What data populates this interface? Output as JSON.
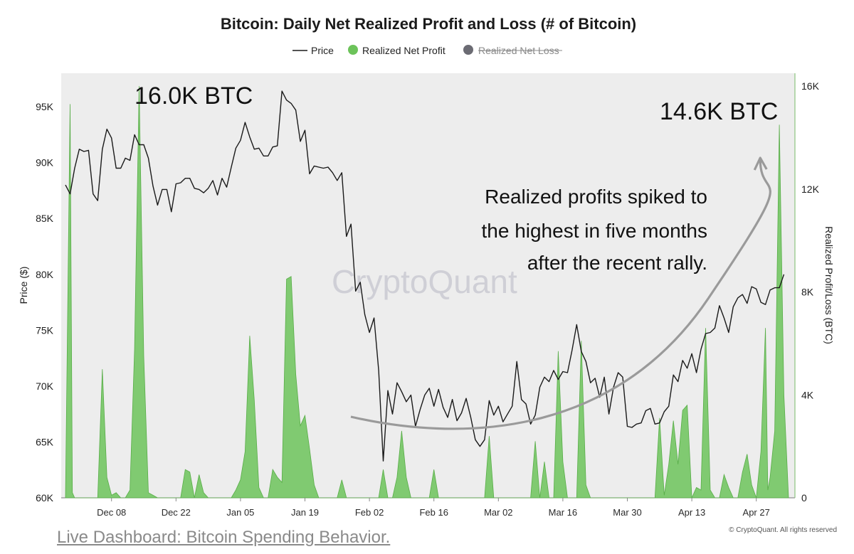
{
  "chart_data": {
    "type": "area",
    "title": "Bitcoin: Daily Net Realized Profit and Loss (# of Bitcoin)",
    "legend": {
      "placement": "top-center",
      "items": [
        {
          "label": "Price",
          "kind": "line",
          "color": "#1a1a1a",
          "active": true
        },
        {
          "label": "Realized Net Profit",
          "kind": "dot",
          "color": "#6cc35a",
          "active": true
        },
        {
          "label": "Realized Net Loss",
          "kind": "dot",
          "color": "#6b6b73",
          "active": false
        }
      ]
    },
    "y_left": {
      "label": "Price ($)",
      "min": 60000,
      "max": 98000,
      "ticks": [
        {
          "value": 60000,
          "label": "60K"
        },
        {
          "value": 65000,
          "label": "65K"
        },
        {
          "value": 70000,
          "label": "70K"
        },
        {
          "value": 75000,
          "label": "75K"
        },
        {
          "value": 80000,
          "label": "80K"
        },
        {
          "value": 85000,
          "label": "85K"
        },
        {
          "value": 90000,
          "label": "90K"
        },
        {
          "value": 95000,
          "label": "95K"
        }
      ]
    },
    "y_right": {
      "label": "Realized Profit/Loss (BTC)",
      "min": 0,
      "max": 16500,
      "ticks": [
        {
          "value": 0,
          "label": "0"
        },
        {
          "value": 4000,
          "label": "4K"
        },
        {
          "value": 8000,
          "label": "8K"
        },
        {
          "value": 12000,
          "label": "12K"
        },
        {
          "value": 16000,
          "label": "16K"
        }
      ]
    },
    "x_axis": {
      "start_day": 0,
      "end_day": 157,
      "ticks": [
        {
          "day": 10,
          "label": "Dec 08"
        },
        {
          "day": 24,
          "label": "Dec 22"
        },
        {
          "day": 38,
          "label": "Jan 05"
        },
        {
          "day": 52,
          "label": "Jan 19"
        },
        {
          "day": 66,
          "label": "Feb 02"
        },
        {
          "day": 80,
          "label": "Feb 16"
        },
        {
          "day": 94,
          "label": "Mar 02"
        },
        {
          "day": 108,
          "label": "Mar 16"
        },
        {
          "day": 122,
          "label": "Mar 30"
        },
        {
          "day": 136,
          "label": "Apr 13"
        },
        {
          "day": 150,
          "label": "Apr 27"
        }
      ]
    },
    "grid": false,
    "series": [
      {
        "name": "Price",
        "kind": "line",
        "axis": "left",
        "color": "#1a1a1a",
        "points": [
          [
            0,
            88000
          ],
          [
            1,
            87200
          ],
          [
            2,
            89500
          ],
          [
            3,
            91200
          ],
          [
            4,
            91000
          ],
          [
            5,
            91100
          ],
          [
            6,
            87200
          ],
          [
            7,
            86600
          ],
          [
            8,
            91200
          ],
          [
            9,
            93000
          ],
          [
            10,
            92200
          ],
          [
            11,
            89500
          ],
          [
            12,
            89500
          ],
          [
            13,
            90400
          ],
          [
            14,
            90200
          ],
          [
            15,
            92500
          ],
          [
            16,
            91600
          ],
          [
            17,
            91600
          ],
          [
            18,
            90400
          ],
          [
            19,
            87900
          ],
          [
            20,
            86200
          ],
          [
            21,
            87600
          ],
          [
            22,
            87600
          ],
          [
            23,
            85600
          ],
          [
            24,
            88100
          ],
          [
            25,
            88200
          ],
          [
            26,
            88600
          ],
          [
            27,
            88600
          ],
          [
            28,
            87700
          ],
          [
            29,
            87600
          ],
          [
            30,
            87300
          ],
          [
            31,
            87700
          ],
          [
            32,
            88400
          ],
          [
            33,
            87100
          ],
          [
            34,
            88600
          ],
          [
            35,
            87800
          ],
          [
            36,
            89600
          ],
          [
            37,
            91300
          ],
          [
            38,
            92000
          ],
          [
            39,
            93600
          ],
          [
            40,
            92300
          ],
          [
            41,
            91200
          ],
          [
            42,
            91300
          ],
          [
            43,
            90600
          ],
          [
            44,
            90600
          ],
          [
            45,
            91400
          ],
          [
            46,
            91500
          ],
          [
            47,
            96400
          ],
          [
            48,
            95600
          ],
          [
            49,
            95300
          ],
          [
            50,
            94700
          ],
          [
            51,
            91900
          ],
          [
            52,
            92900
          ],
          [
            53,
            89000
          ],
          [
            54,
            89700
          ],
          [
            55,
            89600
          ],
          [
            56,
            89500
          ],
          [
            57,
            89600
          ],
          [
            58,
            89100
          ],
          [
            59,
            88400
          ],
          [
            60,
            89100
          ],
          [
            61,
            83400
          ],
          [
            62,
            84500
          ],
          [
            63,
            78500
          ],
          [
            64,
            79300
          ],
          [
            65,
            76400
          ],
          [
            66,
            74800
          ],
          [
            67,
            76100
          ],
          [
            68,
            71400
          ],
          [
            69,
            63300
          ],
          [
            70,
            69600
          ],
          [
            71,
            67500
          ],
          [
            72,
            70300
          ],
          [
            73,
            69500
          ],
          [
            74,
            68600
          ],
          [
            75,
            69200
          ],
          [
            76,
            66400
          ],
          [
            77,
            67900
          ],
          [
            78,
            69200
          ],
          [
            79,
            69800
          ],
          [
            80,
            68200
          ],
          [
            81,
            69700
          ],
          [
            82,
            68100
          ],
          [
            83,
            67200
          ],
          [
            84,
            68800
          ],
          [
            85,
            66900
          ],
          [
            86,
            67600
          ],
          [
            87,
            68900
          ],
          [
            88,
            67200
          ],
          [
            89,
            65200
          ],
          [
            90,
            64600
          ],
          [
            91,
            65200
          ],
          [
            92,
            68700
          ],
          [
            93,
            67400
          ],
          [
            94,
            68200
          ],
          [
            95,
            66800
          ],
          [
            96,
            67500
          ],
          [
            97,
            68200
          ],
          [
            98,
            72200
          ],
          [
            99,
            68800
          ],
          [
            100,
            68400
          ],
          [
            101,
            66600
          ],
          [
            102,
            67400
          ],
          [
            103,
            69900
          ],
          [
            104,
            70800
          ],
          [
            105,
            70400
          ],
          [
            106,
            71400
          ],
          [
            107,
            70600
          ],
          [
            108,
            71300
          ],
          [
            109,
            71200
          ],
          [
            110,
            73200
          ],
          [
            111,
            75500
          ],
          [
            112,
            73100
          ],
          [
            113,
            72200
          ],
          [
            114,
            70300
          ],
          [
            115,
            70700
          ],
          [
            116,
            69000
          ],
          [
            117,
            70800
          ],
          [
            118,
            67500
          ],
          [
            119,
            69900
          ],
          [
            120,
            71200
          ],
          [
            121,
            70800
          ],
          [
            122,
            66400
          ],
          [
            123,
            66300
          ],
          [
            124,
            66600
          ],
          [
            125,
            66700
          ],
          [
            126,
            67800
          ],
          [
            127,
            68000
          ],
          [
            128,
            66600
          ],
          [
            129,
            66700
          ],
          [
            130,
            67700
          ],
          [
            131,
            68200
          ],
          [
            132,
            71000
          ],
          [
            133,
            70400
          ],
          [
            134,
            72300
          ],
          [
            135,
            71600
          ],
          [
            136,
            72900
          ],
          [
            137,
            71200
          ],
          [
            138,
            73300
          ],
          [
            139,
            74700
          ],
          [
            140,
            74800
          ],
          [
            141,
            75200
          ],
          [
            142,
            77200
          ],
          [
            143,
            76100
          ],
          [
            144,
            74800
          ],
          [
            145,
            77100
          ],
          [
            146,
            77900
          ],
          [
            147,
            78200
          ],
          [
            148,
            77400
          ],
          [
            149,
            78900
          ],
          [
            150,
            78700
          ],
          [
            151,
            77500
          ],
          [
            152,
            77300
          ],
          [
            153,
            78600
          ],
          [
            154,
            78800
          ],
          [
            155,
            78800
          ],
          [
            156,
            80000
          ]
        ]
      },
      {
        "name": "Realized Net Profit",
        "kind": "area",
        "axis": "right",
        "color": "#6cc35a",
        "points": [
          [
            0,
            0
          ],
          [
            1,
            15300
          ],
          [
            1.5,
            200
          ],
          [
            2,
            0
          ],
          [
            5,
            0
          ],
          [
            7,
            0
          ],
          [
            8,
            5000
          ],
          [
            9,
            800
          ],
          [
            10,
            100
          ],
          [
            11,
            200
          ],
          [
            12,
            0
          ],
          [
            13,
            0
          ],
          [
            14,
            300
          ],
          [
            15,
            5800
          ],
          [
            16,
            16000
          ],
          [
            17,
            5500
          ],
          [
            18,
            200
          ],
          [
            19,
            100
          ],
          [
            20,
            0
          ],
          [
            22,
            0
          ],
          [
            25,
            0
          ],
          [
            26,
            1100
          ],
          [
            27,
            1000
          ],
          [
            28,
            0
          ],
          [
            29,
            900
          ],
          [
            30,
            200
          ],
          [
            31,
            0
          ],
          [
            36,
            0
          ],
          [
            37,
            300
          ],
          [
            38,
            700
          ],
          [
            39,
            1800
          ],
          [
            40,
            6300
          ],
          [
            41,
            3800
          ],
          [
            42,
            400
          ],
          [
            43,
            0
          ],
          [
            44,
            0
          ],
          [
            45,
            1100
          ],
          [
            46,
            800
          ],
          [
            47,
            600
          ],
          [
            48,
            8500
          ],
          [
            49,
            8600
          ],
          [
            50,
            4800
          ],
          [
            51,
            2800
          ],
          [
            52,
            3200
          ],
          [
            53,
            1900
          ],
          [
            54,
            500
          ],
          [
            55,
            0
          ],
          [
            59,
            0
          ],
          [
            60,
            700
          ],
          [
            61,
            0
          ],
          [
            65,
            0
          ],
          [
            68,
            0
          ],
          [
            69,
            1100
          ],
          [
            70,
            0
          ],
          [
            71,
            0
          ],
          [
            72,
            800
          ],
          [
            73,
            2600
          ],
          [
            74,
            800
          ],
          [
            75,
            0
          ],
          [
            78,
            0
          ],
          [
            79,
            0
          ],
          [
            80,
            1100
          ],
          [
            81,
            0
          ],
          [
            90,
            0
          ],
          [
            91,
            0
          ],
          [
            92,
            2400
          ],
          [
            93,
            0
          ],
          [
            95,
            0
          ],
          [
            100,
            0
          ],
          [
            101,
            0
          ],
          [
            102,
            2200
          ],
          [
            103,
            0
          ],
          [
            104,
            1400
          ],
          [
            105,
            0
          ],
          [
            106,
            0
          ],
          [
            107,
            5700
          ],
          [
            108,
            1400
          ],
          [
            109,
            0
          ],
          [
            111,
            0
          ],
          [
            112,
            6100
          ],
          [
            113,
            500
          ],
          [
            114,
            0
          ],
          [
            121,
            0
          ],
          [
            122,
            0
          ],
          [
            124,
            0
          ],
          [
            128,
            0
          ],
          [
            129,
            3100
          ],
          [
            130,
            100
          ],
          [
            131,
            1300
          ],
          [
            132,
            3000
          ],
          [
            133,
            1300
          ],
          [
            134,
            3400
          ],
          [
            135,
            3600
          ],
          [
            136,
            0
          ],
          [
            137,
            400
          ],
          [
            138,
            300
          ],
          [
            139,
            6600
          ],
          [
            140,
            300
          ],
          [
            141,
            0
          ],
          [
            142,
            0
          ],
          [
            143,
            900
          ],
          [
            144,
            400
          ],
          [
            145,
            0
          ],
          [
            146,
            0
          ],
          [
            147,
            1000
          ],
          [
            148,
            1700
          ],
          [
            149,
            500
          ],
          [
            150,
            0
          ],
          [
            151,
            1800
          ],
          [
            152,
            6600
          ],
          [
            152.5,
            300
          ],
          [
            153,
            800
          ],
          [
            154,
            2600
          ],
          [
            155,
            14500
          ],
          [
            156,
            4000
          ],
          [
            157,
            0
          ]
        ]
      }
    ],
    "annotations": {
      "peak_left": "16.0K BTC",
      "peak_right": "14.6K BTC",
      "note_lines": [
        "Realized profits spiked to",
        "the highest in five months",
        "after the recent rally."
      ],
      "trend_arrow": {
        "start": [
          60,
          13000
        ],
        "end": [
          149,
          11000
        ],
        "color": "#9a9a9a"
      }
    },
    "watermark": "CryptoQuant",
    "copyright": "© CryptoQuant. All rights reserved"
  },
  "footer": {
    "link_text": "Live Dashboard: Bitcoin Spending Behavior."
  }
}
